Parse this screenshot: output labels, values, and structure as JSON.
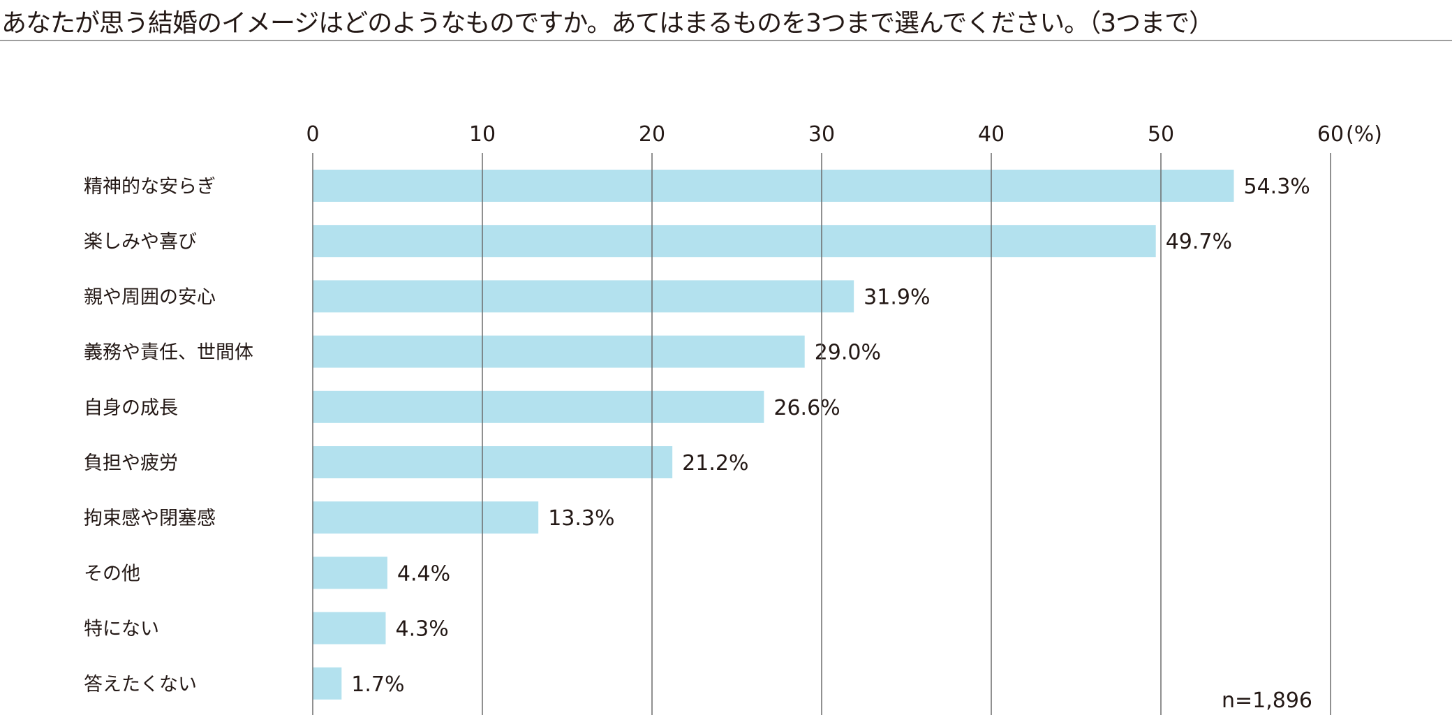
{
  "title": "あなたが思う結婚のイメージはどのようなものですか。あてはまるものを3つまで選んでください。（3つまで）",
  "chart_data": {
    "type": "bar",
    "orientation": "horizontal",
    "categories": [
      "精神的な安らぎ",
      "楽しみや喜び",
      "親や周囲の安心",
      "義務や責任、世間体",
      "自身の成長",
      "負担や疲労",
      "拘束感や閉塞感",
      "その他",
      "特にない",
      "答えたくない"
    ],
    "values": [
      54.3,
      49.7,
      31.9,
      29.0,
      26.6,
      21.2,
      13.3,
      4.4,
      4.3,
      1.7
    ],
    "value_labels": [
      "54.3%",
      "49.7%",
      "31.9%",
      "29.0%",
      "26.6%",
      "21.2%",
      "13.3%",
      "4.4%",
      "4.3%",
      "1.7%"
    ],
    "xlim": [
      0,
      60
    ],
    "ticks": [
      "0",
      "10",
      "20",
      "30",
      "40",
      "50",
      "60"
    ],
    "unit_label": "(%)",
    "grid": true,
    "bar_color": "#b3e1ee",
    "note": "n=1,896"
  }
}
